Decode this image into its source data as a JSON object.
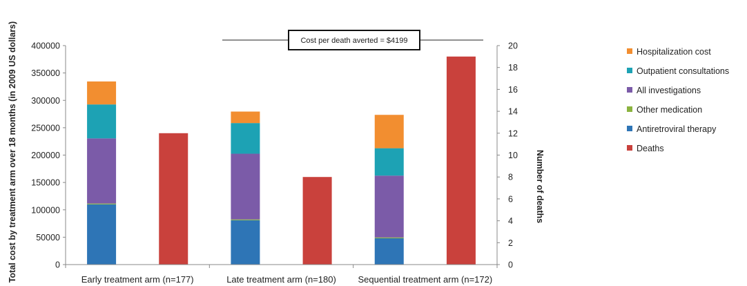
{
  "chart_data": {
    "type": "bar",
    "categories": [
      "Early treatment arm (n=177)",
      "Late treatment arm (n=180)",
      "Sequential treatment arm (n=172)"
    ],
    "ylabel": "Total cost by treatment arm over 18 months (in 2009 US dollars)",
    "y2label": "Number of deaths",
    "ylim": [
      0,
      400000
    ],
    "y2lim": [
      0,
      20
    ],
    "yticks": [
      "0",
      "50000",
      "100000",
      "150000",
      "200000",
      "250000",
      "300000",
      "350000",
      "400000"
    ],
    "y2ticks": [
      "0",
      "2",
      "4",
      "6",
      "8",
      "10",
      "12",
      "14",
      "16",
      "18",
      "20"
    ],
    "grid": false,
    "legend_position": "right",
    "annotation": "Cost per death averted = $4199",
    "series": [
      {
        "name": "Antiretroviral therapy",
        "color": "#2E75B6",
        "axis": "left",
        "values": [
          110000,
          81000,
          48000
        ]
      },
      {
        "name": "Other medication",
        "color": "#8BB33F",
        "axis": "left",
        "values": [
          1500,
          1500,
          1500
        ]
      },
      {
        "name": "All investigations",
        "color": "#7B5BA8",
        "axis": "left",
        "values": [
          119000,
          120000,
          113000
        ]
      },
      {
        "name": "Outpatient consultations",
        "color": "#1DA2B4",
        "axis": "left",
        "values": [
          62000,
          56000,
          50000
        ]
      },
      {
        "name": "Hospitalization cost",
        "color": "#F28E30",
        "axis": "left",
        "values": [
          42000,
          21000,
          61000
        ]
      },
      {
        "name": "Deaths",
        "color": "#C9413C",
        "axis": "right",
        "values": [
          12,
          8,
          19
        ]
      }
    ],
    "legend_order": [
      "Hospitalization cost",
      "Outpatient consultations",
      "All investigations",
      "Other medication",
      "Antiretroviral therapy",
      "Deaths"
    ]
  }
}
